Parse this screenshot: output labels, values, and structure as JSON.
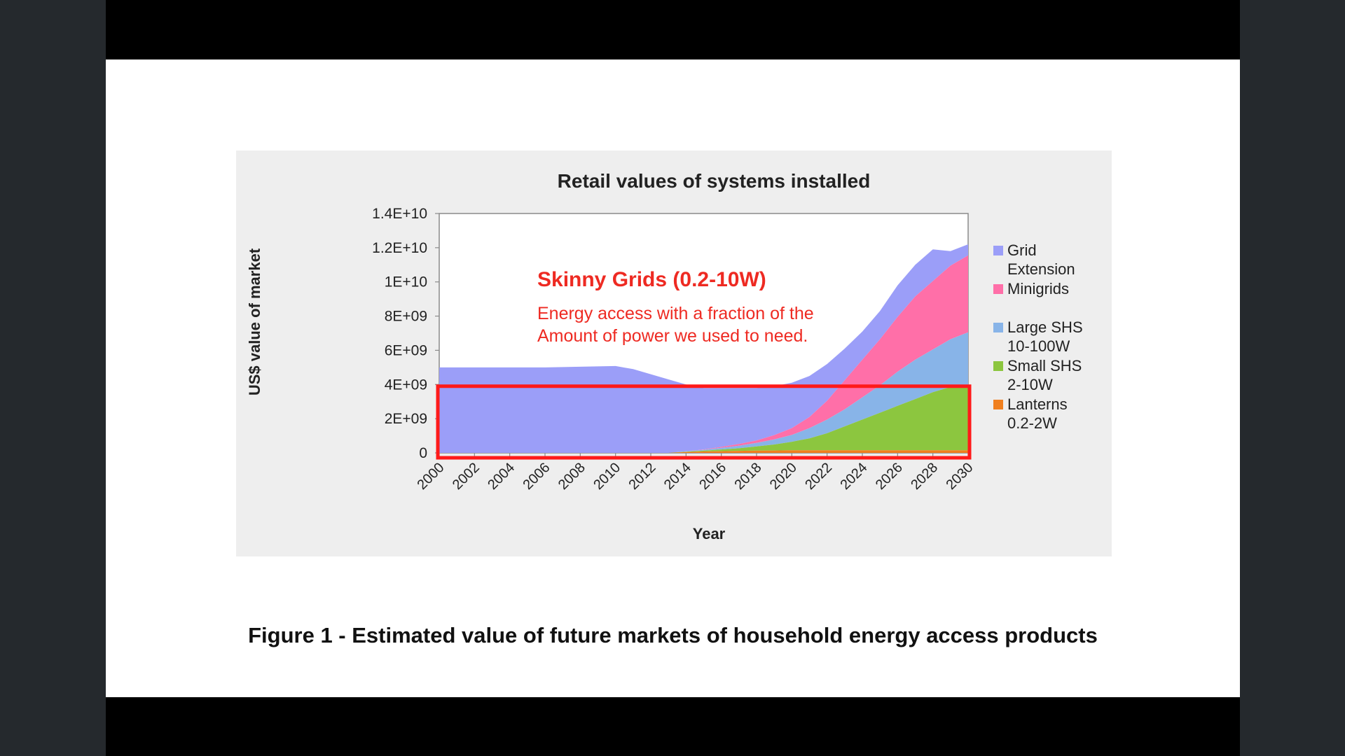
{
  "colors": {
    "background": "#25292d",
    "letterbox": "#000000",
    "slide": "#ffffff",
    "chart_bg": "#eeeeee",
    "highlight_box": "#ff1a1a",
    "annotation_text": "#ee2a22"
  },
  "caption": "Figure 1 - Estimated value of future markets of household energy access products",
  "annotation": {
    "title": "Skinny Grids (0.2-10W)",
    "line1": "Energy access with a fraction of the",
    "line2": "Amount of power we used to need."
  },
  "chart_data": {
    "type": "area",
    "title": "Retail values of systems installed",
    "xlabel": "Year",
    "ylabel": "US$ value of market",
    "ylim": [
      0,
      14000000000
    ],
    "xlim": [
      2000,
      2030
    ],
    "y_ticks": [
      {
        "value": 0,
        "label": "0"
      },
      {
        "value": 2000000000,
        "label": "2E+09"
      },
      {
        "value": 4000000000,
        "label": "4E+09"
      },
      {
        "value": 6000000000,
        "label": "6E+09"
      },
      {
        "value": 8000000000,
        "label": "8E+09"
      },
      {
        "value": 10000000000,
        "label": "1E+10"
      },
      {
        "value": 12000000000,
        "label": "1.2E+10"
      },
      {
        "value": 14000000000,
        "label": "1.4E+10"
      }
    ],
    "x_ticks": [
      "2000",
      "2002",
      "2004",
      "2006",
      "2008",
      "2010",
      "2012",
      "2014",
      "2016",
      "2018",
      "2020",
      "2022",
      "2024",
      "2026",
      "2028",
      "2030"
    ],
    "highlight_range": {
      "x": [
        2000,
        2030
      ],
      "y": [
        0,
        3900000000
      ]
    },
    "x": [
      2000,
      2001,
      2002,
      2003,
      2004,
      2005,
      2006,
      2007,
      2008,
      2009,
      2010,
      2011,
      2012,
      2013,
      2014,
      2015,
      2016,
      2017,
      2018,
      2019,
      2020,
      2021,
      2022,
      2023,
      2024,
      2025,
      2026,
      2027,
      2028,
      2029,
      2030
    ],
    "series": [
      {
        "name": "Lanterns\n0.2-2W",
        "color": "#f07f1e",
        "values": [
          0,
          0,
          0,
          0,
          0,
          0,
          0,
          0,
          0,
          0,
          0,
          0,
          0,
          0,
          50000000.0,
          80000000.0,
          100000000.0,
          120000000.0,
          130000000.0,
          140000000.0,
          150000000.0,
          150000000.0,
          150000000.0,
          150000000.0,
          150000000.0,
          150000000.0,
          150000000.0,
          150000000.0,
          150000000.0,
          150000000.0,
          150000000.0
        ]
      },
      {
        "name": "Small SHS\n2-10W",
        "color": "#8cc63f",
        "values": [
          0,
          0,
          0,
          0,
          0,
          0,
          0,
          0,
          0,
          0,
          0,
          0,
          0,
          0,
          20000000.0,
          50000000.0,
          100000000.0,
          150000000.0,
          250000000.0,
          350000000.0,
          500000000.0,
          700000000.0,
          1000000000.0,
          1400000000.0,
          1800000000.0,
          2200000000.0,
          2600000000.0,
          3000000000.0,
          3400000000.0,
          3700000000.0,
          3800000000.0
        ]
      },
      {
        "name": "Large SHS\n10-100W",
        "color": "#88b4e8",
        "values": [
          0,
          0,
          0,
          0,
          0,
          0,
          0,
          0,
          0,
          0,
          0,
          0,
          0,
          0,
          20000000.0,
          50000000.0,
          100000000.0,
          150000000.0,
          200000000.0,
          300000000.0,
          400000000.0,
          600000000.0,
          800000000.0,
          1000000000.0,
          1300000000.0,
          1600000000.0,
          2000000000.0,
          2300000000.0,
          2500000000.0,
          2800000000.0,
          3100000000.0
        ]
      },
      {
        "name": "Minigrids",
        "color": "#ff6fa8",
        "values": [
          0,
          0,
          0,
          0,
          0,
          0,
          0,
          0,
          0,
          0,
          0,
          0,
          0,
          0,
          0,
          20000000.0,
          50000000.0,
          100000000.0,
          150000000.0,
          250000000.0,
          400000000.0,
          650000000.0,
          1100000000.0,
          1700000000.0,
          2200000000.0,
          2700000000.0,
          3200000000.0,
          3700000000.0,
          4000000000.0,
          4300000000.0,
          4500000000.0
        ]
      },
      {
        "name": "Grid\nExtension",
        "color": "#9b9ef8",
        "values": [
          5000000000.0,
          5000000000.0,
          5000000000.0,
          5000000000.0,
          5000000000.0,
          5000000000.0,
          5000000000.0,
          5020000000.0,
          5040000000.0,
          5060000000.0,
          5080000000.0,
          4900000000.0,
          4600000000.0,
          4300000000.0,
          3910000000.0,
          3600000000.0,
          3450000000.0,
          3280000000.0,
          3070000000.0,
          2860000000.0,
          2650000000.0,
          2400000000.0,
          2150000000.0,
          1850000000.0,
          1650000000.0,
          1650000000.0,
          1850000000.0,
          1850000000.0,
          1850000000.0,
          850000000.0,
          650000000.0
        ]
      }
    ],
    "legend_order": [
      "Grid\nExtension",
      "Minigrids",
      "Large SHS\n10-100W",
      "Small SHS\n2-10W",
      "Lanterns\n0.2-2W"
    ],
    "legend_position": "right",
    "grid": false
  }
}
